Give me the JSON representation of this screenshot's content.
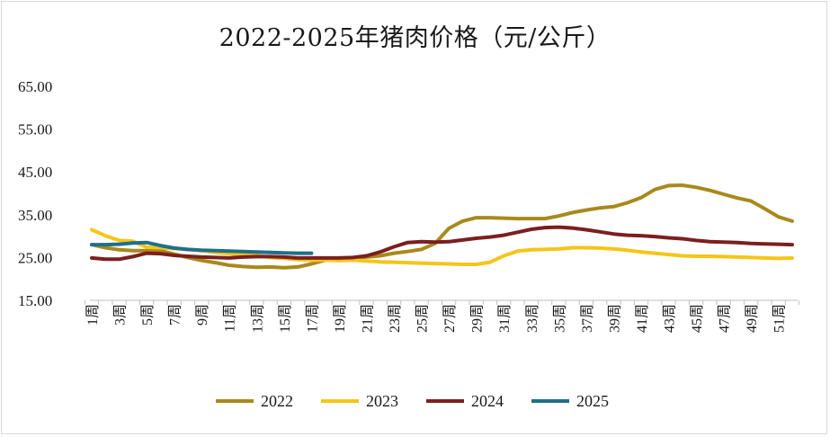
{
  "chart_data": {
    "type": "line",
    "title": "2022-2025年猪肉价格（元/公斤）",
    "ylim": [
      15,
      65
    ],
    "yticks": [
      "65.00",
      "55.00",
      "45.00",
      "35.00",
      "25.00",
      "15.00"
    ],
    "ytick_values": [
      65,
      55,
      45,
      35,
      25,
      15
    ],
    "x_count": 52,
    "xtick_labels": [
      "1周",
      "3周",
      "5周",
      "7周",
      "9周",
      "11周",
      "13周",
      "15周",
      "17周",
      "19周",
      "21周",
      "23周",
      "25周",
      "27周",
      "29周",
      "31周",
      "33周",
      "35周",
      "37周",
      "39周",
      "41周",
      "43周",
      "45周",
      "47周",
      "49周",
      "51周"
    ],
    "xtick_weeks": [
      1,
      3,
      5,
      7,
      9,
      11,
      13,
      15,
      17,
      19,
      21,
      23,
      25,
      27,
      29,
      31,
      33,
      35,
      37,
      39,
      41,
      43,
      45,
      47,
      49,
      51
    ],
    "grid": false,
    "legend_position": "bottom",
    "series": [
      {
        "name": "2022",
        "color": "#a8891c",
        "values": [
          28.0,
          27.3,
          26.8,
          26.6,
          26.6,
          26.6,
          25.8,
          25.0,
          24.3,
          23.8,
          23.2,
          22.9,
          22.7,
          22.8,
          22.6,
          22.8,
          23.5,
          24.4,
          24.9,
          24.9,
          25.1,
          25.4,
          26.0,
          26.4,
          26.9,
          28.3,
          31.8,
          33.5,
          34.3,
          34.3,
          34.2,
          34.1,
          34.1,
          34.1,
          34.7,
          35.5,
          36.1,
          36.6,
          36.9,
          37.8,
          39.0,
          40.9,
          41.8,
          41.9,
          41.4,
          40.7,
          39.8,
          38.9,
          38.2,
          36.4,
          34.5,
          33.5
        ]
      },
      {
        "name": "2023",
        "color": "#f5c518",
        "values": [
          31.5,
          30.1,
          29.0,
          28.8,
          27.4,
          27.3,
          27.1,
          26.9,
          26.6,
          26.2,
          25.9,
          25.7,
          25.5,
          25.0,
          24.8,
          24.5,
          24.4,
          24.4,
          24.3,
          24.4,
          24.2,
          24.0,
          23.9,
          23.8,
          23.7,
          23.6,
          23.5,
          23.4,
          23.4,
          23.9,
          25.4,
          26.5,
          26.8,
          26.9,
          27.0,
          27.3,
          27.3,
          27.2,
          27.0,
          26.7,
          26.3,
          26.0,
          25.7,
          25.4,
          25.3,
          25.3,
          25.2,
          25.1,
          25.0,
          24.9,
          24.8,
          24.9
        ]
      },
      {
        "name": "2024",
        "color": "#7b1f1f",
        "values": [
          24.9,
          24.6,
          24.6,
          25.2,
          26.0,
          25.9,
          25.5,
          25.3,
          25.1,
          25.0,
          24.9,
          25.1,
          25.2,
          25.2,
          25.1,
          24.9,
          24.9,
          24.9,
          24.9,
          25.0,
          25.4,
          26.3,
          27.5,
          28.5,
          28.7,
          28.6,
          28.7,
          29.1,
          29.5,
          29.8,
          30.2,
          30.9,
          31.6,
          32.0,
          32.1,
          31.9,
          31.5,
          31.0,
          30.5,
          30.2,
          30.1,
          29.9,
          29.6,
          29.4,
          29.0,
          28.7,
          28.6,
          28.5,
          28.3,
          28.2,
          28.1,
          28.0
        ]
      },
      {
        "name": "2025",
        "color": "#1f6f8b",
        "values": [
          28.0,
          28.0,
          28.1,
          28.4,
          28.5,
          27.8,
          27.2,
          26.9,
          26.7,
          26.6,
          26.5,
          26.4,
          26.3,
          26.2,
          26.1,
          26.0,
          26.0
        ]
      }
    ]
  }
}
